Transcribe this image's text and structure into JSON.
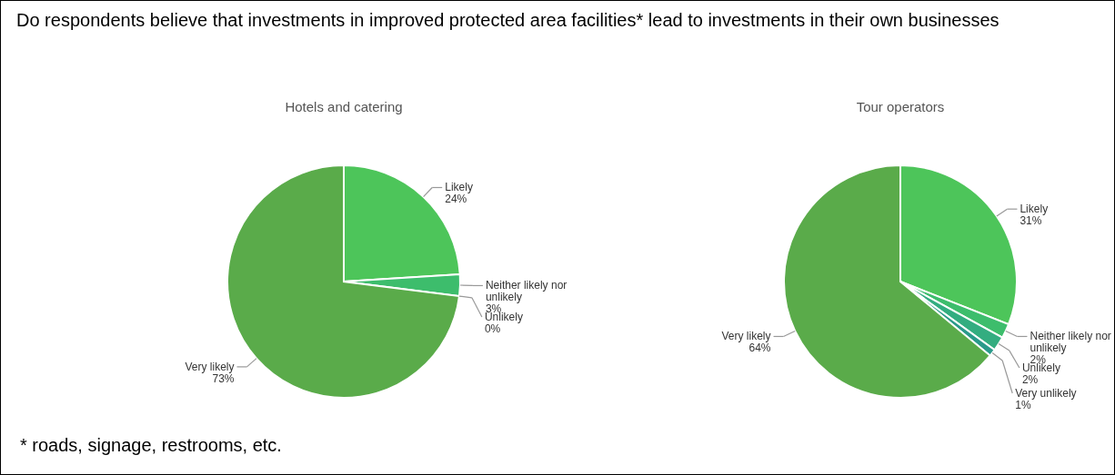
{
  "chart_data": [
    {
      "type": "other",
      "title": "Do respondents believe that investments in improved protected area facilities* lead to investments in their own businesses",
      "annotations": [
        "* roads, signage, restrooms, etc."
      ]
    },
    {
      "type": "pie",
      "title": "Hotels and catering",
      "categories": [
        "Likely",
        "Neither likely nor unlikely",
        "Unlikely",
        "Very likely"
      ],
      "values": [
        24,
        3,
        0,
        73
      ],
      "value_labels": [
        "24%",
        "3%",
        "0%",
        "73%"
      ],
      "colors": [
        "#4dc55a",
        "#3dbd6c",
        "#33ad80",
        "#5aab4a"
      ]
    },
    {
      "type": "pie",
      "title": "Tour operators",
      "categories": [
        "Likely",
        "Neither likely nor unlikely",
        "Unlikely",
        "Very unlikely",
        "Very likely"
      ],
      "values": [
        31,
        2,
        2,
        1,
        64
      ],
      "value_labels": [
        "31%",
        "2%",
        "2%",
        "1%",
        "64%"
      ],
      "colors": [
        "#4dc55a",
        "#3dbd6c",
        "#33ad80",
        "#2a9a8a",
        "#5aab4a"
      ]
    }
  ]
}
